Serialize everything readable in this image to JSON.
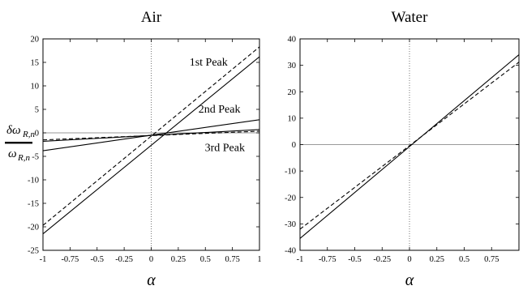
{
  "figure": {
    "ylabel_numerator": "δω",
    "ylabel_numerator_sub": "R,n",
    "ylabel_denominator": "ω",
    "ylabel_denominator_sub": "R,n"
  },
  "chart_data": [
    {
      "type": "line",
      "title": "Air",
      "xlabel": "α",
      "xlim": [
        -1,
        1
      ],
      "ylim": [
        -25,
        20
      ],
      "xticks": [
        "-1",
        "-0.75",
        "-0.5",
        "-0.25",
        "0",
        "0.25",
        "0.5",
        "0.75",
        "1"
      ],
      "yticks": [
        "-25",
        "-20",
        "-15",
        "-10",
        "-5",
        "0",
        "5",
        "10",
        "15",
        "20"
      ],
      "zero_lines": true,
      "grid": false,
      "series": [
        {
          "x": [
            -1,
            1
          ],
          "y": [
            -21.5,
            16.2
          ],
          "style": "solid"
        },
        {
          "x": [
            -1,
            1
          ],
          "y": [
            -19.7,
            18.3
          ],
          "style": "dashed"
        },
        {
          "x": [
            -1,
            1
          ],
          "y": [
            -3.8,
            2.8
          ],
          "style": "solid"
        },
        {
          "x": [
            -1,
            1
          ],
          "y": [
            -1.8,
            0.7
          ],
          "style": "solid"
        },
        {
          "x": [
            -1,
            1
          ],
          "y": [
            -1.5,
            0.35
          ],
          "style": "dashed"
        }
      ],
      "annotations": [
        {
          "text": "1st Peak",
          "x": 0.53,
          "y": 14.3
        },
        {
          "text": "2nd Peak",
          "x": 0.63,
          "y": 4.3
        },
        {
          "text": "3rd Peak",
          "x": 0.68,
          "y": -3.9
        }
      ]
    },
    {
      "type": "line",
      "title": "Water",
      "xlabel": "α",
      "xlim": [
        -1,
        1
      ],
      "ylim": [
        -40,
        40
      ],
      "xticks": [
        "-1",
        "-0.75",
        "-0.5",
        "-0.25",
        "0",
        "0.25",
        "0.5",
        "0.75"
      ],
      "yticks": [
        "-40",
        "-30",
        "-20",
        "-10",
        "0",
        "10",
        "20",
        "30",
        "40"
      ],
      "zero_lines": true,
      "grid": false,
      "series": [
        {
          "x": [
            -1,
            1
          ],
          "y": [
            -35.5,
            34.0
          ],
          "style": "solid"
        },
        {
          "x": [
            -1,
            1
          ],
          "y": [
            -32.0,
            31.2
          ],
          "style": "dashed"
        }
      ],
      "annotations": []
    }
  ]
}
